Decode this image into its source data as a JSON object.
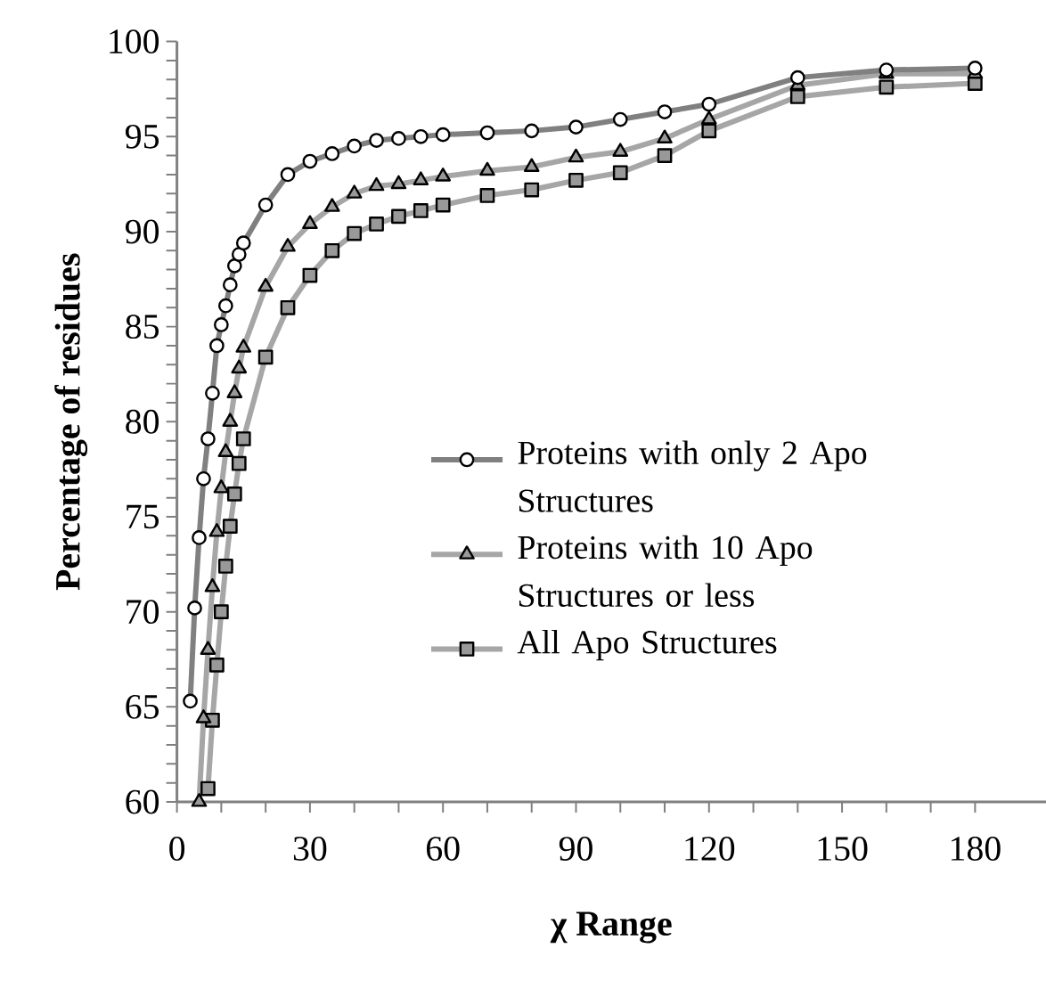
{
  "chart_data": {
    "type": "line",
    "xlabel": "χ Range",
    "ylabel": "Percentage of residues",
    "xlim": [
      0,
      196
    ],
    "ylim": [
      60,
      100
    ],
    "xticks": [
      0,
      30,
      60,
      90,
      120,
      150,
      180
    ],
    "yticks": [
      60,
      65,
      70,
      75,
      80,
      85,
      90,
      95,
      100
    ],
    "legend": "center right",
    "grid": false,
    "series": [
      {
        "name": "Proteins with only 2 Apo Structures",
        "color": "#808080",
        "marker": "circle",
        "x": [
          3,
          4,
          5,
          6,
          7,
          8,
          9,
          10,
          11,
          12,
          13,
          14,
          15,
          20,
          25,
          30,
          35,
          40,
          45,
          50,
          55,
          60,
          70,
          80,
          90,
          100,
          110,
          120,
          140,
          160,
          180
        ],
        "values": [
          65.3,
          70.2,
          73.9,
          77.0,
          79.1,
          81.5,
          84.0,
          85.1,
          86.1,
          87.2,
          88.2,
          88.8,
          89.4,
          91.4,
          93.0,
          93.7,
          94.1,
          94.5,
          94.8,
          94.9,
          95.0,
          95.1,
          95.2,
          95.3,
          95.5,
          95.9,
          96.3,
          96.7,
          98.1,
          98.5,
          98.6
        ]
      },
      {
        "name": "Proteins with 10 Apo Structures or less",
        "color": "#a6a6a6",
        "marker": "triangle",
        "x": [
          5,
          6,
          7,
          8,
          9,
          10,
          11,
          12,
          13,
          14,
          15,
          20,
          25,
          30,
          35,
          40,
          45,
          50,
          55,
          60,
          70,
          80,
          90,
          100,
          110,
          120,
          140,
          160,
          180
        ],
        "values": [
          60.0,
          64.4,
          68.0,
          71.3,
          74.2,
          76.5,
          78.4,
          80.0,
          81.5,
          82.8,
          83.9,
          87.1,
          89.2,
          90.4,
          91.3,
          92.0,
          92.4,
          92.5,
          92.7,
          92.9,
          93.2,
          93.4,
          93.9,
          94.2,
          94.9,
          95.9,
          97.7,
          98.3,
          98.3
        ]
      },
      {
        "name": "All Apo Structures",
        "color": "#a6a6a6",
        "marker": "square",
        "x": [
          7,
          8,
          9,
          10,
          11,
          12,
          13,
          14,
          15,
          20,
          25,
          30,
          35,
          40,
          45,
          50,
          55,
          60,
          70,
          80,
          90,
          100,
          110,
          120,
          140,
          160,
          180
        ],
        "values": [
          60.7,
          64.3,
          67.2,
          70.0,
          72.4,
          74.5,
          76.2,
          77.8,
          79.1,
          83.4,
          86.0,
          87.7,
          89.0,
          89.9,
          90.4,
          90.8,
          91.1,
          91.4,
          91.9,
          92.2,
          92.7,
          93.1,
          94.0,
          95.3,
          97.1,
          97.6,
          97.8
        ]
      }
    ]
  }
}
